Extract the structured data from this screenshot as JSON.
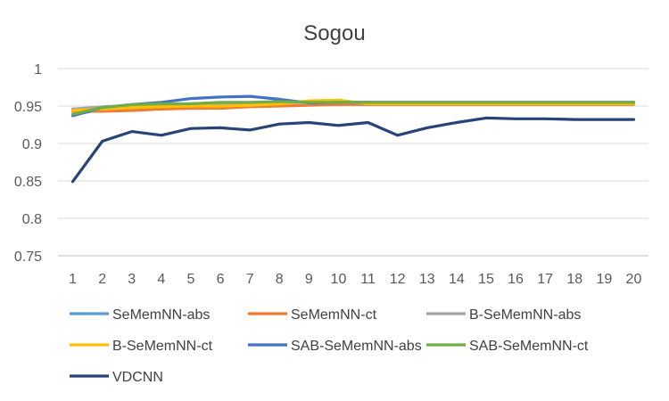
{
  "chart_data": {
    "type": "line",
    "title": "Sogou",
    "xlabel": "",
    "ylabel": "",
    "x": [
      1,
      2,
      3,
      4,
      5,
      6,
      7,
      8,
      9,
      10,
      11,
      12,
      13,
      14,
      15,
      16,
      17,
      18,
      19,
      20
    ],
    "ylim": [
      0.75,
      1
    ],
    "yticks": [
      0.75,
      0.8,
      0.85,
      0.9,
      0.95,
      1
    ],
    "ytick_labels": [
      "0.75",
      "0.8",
      "0.85",
      "0.9",
      "0.95",
      "1"
    ],
    "grid": "horizontal",
    "legend_position": "bottom",
    "series": [
      {
        "name": "SeMemNN-abs",
        "color": "#5b9bd5",
        "values": [
          0.938,
          0.946,
          0.95,
          0.952,
          0.953,
          0.954,
          0.954,
          0.955,
          0.955,
          0.955,
          0.955,
          0.955,
          0.955,
          0.955,
          0.955,
          0.955,
          0.955,
          0.955,
          0.955,
          0.955
        ]
      },
      {
        "name": "SeMemNN-ct",
        "color": "#ed7d31",
        "values": [
          0.943,
          0.943,
          0.944,
          0.946,
          0.947,
          0.947,
          0.949,
          0.95,
          0.951,
          0.952,
          0.952,
          0.952,
          0.952,
          0.952,
          0.952,
          0.952,
          0.952,
          0.952,
          0.952,
          0.952
        ]
      },
      {
        "name": "B-SeMemNN-abs",
        "color": "#a5a5a5",
        "values": [
          0.946,
          0.949,
          0.951,
          0.952,
          0.953,
          0.953,
          0.953,
          0.954,
          0.955,
          0.955,
          0.954,
          0.954,
          0.954,
          0.954,
          0.954,
          0.954,
          0.954,
          0.954,
          0.954,
          0.954
        ]
      },
      {
        "name": "B-SeMemNN-ct",
        "color": "#ffc000",
        "values": [
          0.944,
          0.946,
          0.948,
          0.949,
          0.95,
          0.95,
          0.951,
          0.953,
          0.957,
          0.958,
          0.953,
          0.953,
          0.953,
          0.953,
          0.953,
          0.953,
          0.953,
          0.953,
          0.953,
          0.953
        ]
      },
      {
        "name": "SAB-SeMemNN-abs",
        "color": "#4472c4",
        "values": [
          0.937,
          0.948,
          0.952,
          0.955,
          0.96,
          0.962,
          0.963,
          0.959,
          0.954,
          0.955,
          0.955,
          0.955,
          0.955,
          0.955,
          0.955,
          0.955,
          0.955,
          0.955,
          0.955,
          0.955
        ]
      },
      {
        "name": "SAB-SeMemNN-ct",
        "color": "#70ad47",
        "values": [
          0.939,
          0.948,
          0.952,
          0.953,
          0.953,
          0.955,
          0.955,
          0.956,
          0.955,
          0.955,
          0.955,
          0.955,
          0.955,
          0.955,
          0.955,
          0.955,
          0.955,
          0.955,
          0.955,
          0.955
        ]
      },
      {
        "name": "VDCNN",
        "color": "#264478",
        "values": [
          0.849,
          0.903,
          0.916,
          0.911,
          0.92,
          0.921,
          0.918,
          0.926,
          0.928,
          0.924,
          0.928,
          0.911,
          0.921,
          0.928,
          0.934,
          0.933,
          0.933,
          0.932,
          0.932,
          0.932
        ]
      }
    ]
  }
}
